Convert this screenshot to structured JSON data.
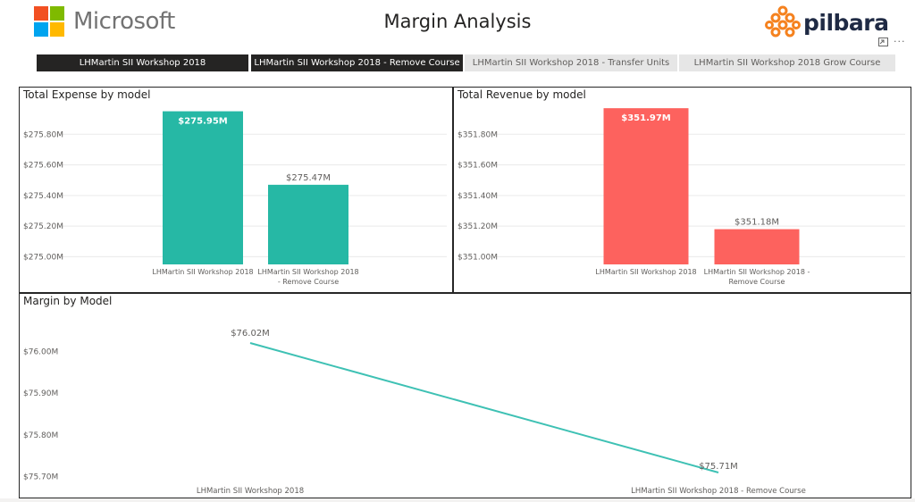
{
  "header": {
    "brand_left": "Microsoft",
    "title": "Margin Analysis",
    "brand_right": "pilbara",
    "icons": [
      "focus-mode-icon",
      "more-options-icon"
    ]
  },
  "tabs": [
    {
      "label": "LHMartin SII Workshop 2018",
      "state": "dark"
    },
    {
      "label": "LHMartin SII Workshop 2018 - Remove Course",
      "state": "dark"
    },
    {
      "label": "LHMartin SII Workshop 2018 - Transfer Units",
      "state": "light"
    },
    {
      "label": "LHMartin SII Workshop 2018 Grow Course",
      "state": "light"
    }
  ],
  "colors": {
    "expense_bar": "#26b8a5",
    "revenue_bar": "#fd625e",
    "margin_line": "#3ec1b4",
    "ms_red": "#f25022",
    "ms_green": "#7fba00",
    "ms_blue": "#00a4ef",
    "ms_yellow": "#ffb900",
    "pilbara_orange": "#f5821f"
  },
  "chart_data": [
    {
      "type": "bar",
      "title": "Total Expense by model",
      "categories": [
        "LHMartin SII Workshop 2018",
        "LHMartin SII Workshop 2018 - Remove Course"
      ],
      "values": [
        275.95,
        275.47
      ],
      "value_labels": [
        "$275.95M",
        "$275.47M"
      ],
      "label_inside": [
        true,
        false
      ],
      "yticks": [
        "$275.00M",
        "$275.20M",
        "$275.40M",
        "$275.60M",
        "$275.80M"
      ],
      "ytick_values": [
        275.0,
        275.2,
        275.4,
        275.6,
        275.8
      ],
      "ylim": [
        274.95,
        276.0
      ],
      "grid": true
    },
    {
      "type": "bar",
      "title": "Total Revenue by model",
      "categories": [
        "LHMartin SII Workshop 2018",
        "LHMartin SII Workshop 2018 - Remove Course"
      ],
      "values": [
        351.97,
        351.18
      ],
      "value_labels": [
        "$351.97M",
        "$351.18M"
      ],
      "label_inside": [
        true,
        false
      ],
      "yticks": [
        "$351.00M",
        "$351.20M",
        "$351.40M",
        "$351.60M",
        "$351.80M"
      ],
      "ytick_values": [
        351.0,
        351.2,
        351.4,
        351.6,
        351.8
      ],
      "ylim": [
        350.95,
        352.0
      ],
      "grid": true
    },
    {
      "type": "line",
      "title": "Margin by Model",
      "categories": [
        "LHMartin SII Workshop 2018",
        "LHMartin SII Workshop 2018 - Remove Course"
      ],
      "values": [
        76.02,
        75.71
      ],
      "value_labels": [
        "$76.02M",
        "$75.71M"
      ],
      "yticks": [
        "$75.70M",
        "$75.80M",
        "$75.90M",
        "$76.00M"
      ],
      "ytick_values": [
        75.7,
        75.8,
        75.9,
        76.0
      ],
      "ylim": [
        75.695,
        76.035
      ],
      "grid": false
    }
  ]
}
